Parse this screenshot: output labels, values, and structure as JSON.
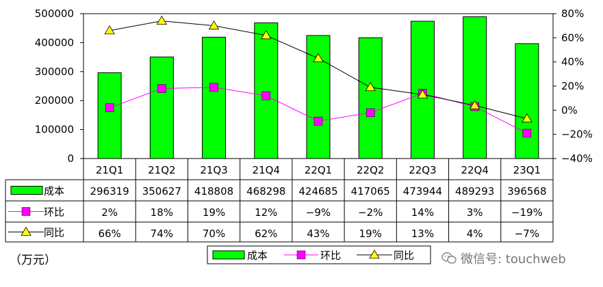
{
  "chart_data": {
    "type": "bar",
    "categories": [
      "21Q1",
      "21Q2",
      "21Q3",
      "21Q4",
      "22Q1",
      "22Q2",
      "22Q3",
      "22Q4",
      "23Q1"
    ],
    "series": [
      {
        "name": "成本",
        "kind": "bar",
        "axis": "left",
        "color": "#00ff00",
        "values": [
          296319,
          350627,
          418808,
          468298,
          424685,
          417065,
          473944,
          489293,
          396568
        ]
      },
      {
        "name": "环比",
        "kind": "line",
        "axis": "right",
        "marker": "square",
        "color": "#ff00ff",
        "values": [
          2,
          18,
          19,
          12,
          -9,
          -2,
          14,
          3,
          -19
        ]
      },
      {
        "name": "同比",
        "kind": "line",
        "axis": "right",
        "marker": "triangle",
        "color": "#000000",
        "marker_color": "#ffff00",
        "values": [
          66,
          74,
          70,
          62,
          43,
          19,
          13,
          4,
          -7
        ]
      }
    ],
    "table_rows": [
      [
        "296319",
        "350627",
        "418808",
        "468298",
        "424685",
        "417065",
        "473944",
        "489293",
        "396568"
      ],
      [
        "2%",
        "18%",
        "19%",
        "12%",
        "−9%",
        "−2%",
        "14%",
        "3%",
        "−19%"
      ],
      [
        "66%",
        "74%",
        "70%",
        "62%",
        "43%",
        "19%",
        "13%",
        "4%",
        "−7%"
      ]
    ],
    "y_left": {
      "min": 0,
      "max": 500000,
      "ticks": [
        0,
        100000,
        200000,
        300000,
        400000,
        500000
      ],
      "tick_labels": [
        "0",
        "100000",
        "200000",
        "300000",
        "400000",
        "500000"
      ]
    },
    "y_right": {
      "min": -40,
      "max": 80,
      "ticks": [
        -40,
        -20,
        0,
        20,
        40,
        60,
        80
      ],
      "tick_labels": [
        "−40%",
        "−20%",
        "0%",
        "20%",
        "40%",
        "60%",
        "80%"
      ]
    },
    "legend_position": "bottom",
    "grid": false
  },
  "unit_label": "（万元）",
  "watermark": "微信号: touchweb"
}
